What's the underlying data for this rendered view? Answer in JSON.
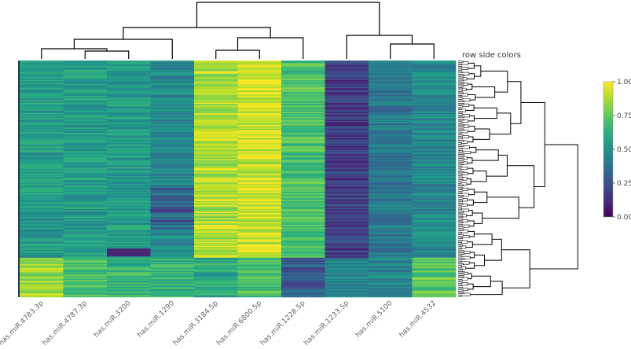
{
  "chart_data": {
    "type": "heatmap",
    "title": "",
    "row_side_label": "row side colors",
    "columns": [
      "has.miR.4783.3p",
      "has.miR.4787.3p",
      "has.miR.3200",
      "has.miR.1290",
      "has.miR.3184.5p",
      "has.miR.6800.5p",
      "has.miR.1228.5p",
      "has.miR.1233.5p",
      "has.miR.5100",
      "has.miR.4532"
    ],
    "column_means_upper_block": [
      0.55,
      0.55,
      0.55,
      0.48,
      0.88,
      0.93,
      0.7,
      0.18,
      0.4,
      0.47
    ],
    "column_means_lower_block": [
      0.85,
      0.7,
      0.65,
      0.65,
      0.6,
      0.7,
      0.3,
      0.45,
      0.45,
      0.75
    ],
    "colorbar": {
      "min": 0,
      "max": 1,
      "ticks": [
        "0.00",
        "0.25",
        "0.50",
        "0.75",
        "1.00"
      ],
      "colormap": "viridis"
    },
    "column_dendrogram_merge_order": [
      [
        1,
        2
      ],
      [
        0,
        "1+2"
      ],
      [
        3,
        "0+1+2"
      ],
      [
        4,
        5
      ],
      [
        8,
        9
      ],
      [
        7,
        "8+9"
      ],
      [
        6,
        "4+5"
      ],
      [
        "0..3",
        "4..6"
      ],
      [
        "0..6",
        "7..9"
      ]
    ]
  }
}
